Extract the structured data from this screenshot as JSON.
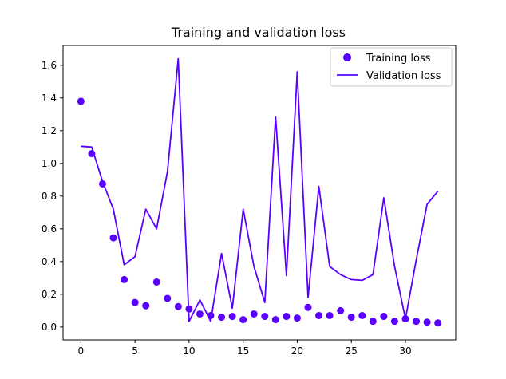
{
  "chart_data": {
    "type": "line",
    "title": "Training and validation loss",
    "xlabel": "",
    "ylabel": "",
    "xlim": [
      -1.65,
      34.65
    ],
    "ylim": [
      -0.0788,
      1.721
    ],
    "x_ticks": [
      0,
      5,
      10,
      15,
      20,
      25,
      30
    ],
    "y_ticks": [
      0.0,
      0.2,
      0.4,
      0.6,
      0.8,
      1.0,
      1.2,
      1.4,
      1.6
    ],
    "x_tick_labels": [
      "0",
      "5",
      "10",
      "15",
      "20",
      "25",
      "30"
    ],
    "y_tick_labels": [
      "0.0",
      "0.2",
      "0.4",
      "0.6",
      "0.8",
      "1.0",
      "1.2",
      "1.4",
      "1.6"
    ],
    "grid": false,
    "legend_position": "top-right",
    "series": [
      {
        "name": "Training loss",
        "style": "scatter",
        "color": "#5a00ff",
        "x": [
          0,
          1,
          2,
          3,
          4,
          5,
          6,
          7,
          8,
          9,
          10,
          11,
          12,
          13,
          14,
          15,
          16,
          17,
          18,
          19,
          20,
          21,
          22,
          23,
          24,
          25,
          26,
          27,
          28,
          29,
          30,
          31,
          32,
          33
        ],
        "values": [
          1.38,
          1.06,
          0.875,
          0.545,
          0.29,
          0.15,
          0.13,
          0.275,
          0.175,
          0.125,
          0.11,
          0.08,
          0.07,
          0.06,
          0.065,
          0.045,
          0.08,
          0.065,
          0.045,
          0.065,
          0.055,
          0.12,
          0.07,
          0.07,
          0.1,
          0.06,
          0.07,
          0.035,
          0.065,
          0.035,
          0.05,
          0.035,
          0.03,
          0.025
        ]
      },
      {
        "name": "Validation loss",
        "style": "line",
        "color": "#5a00ff",
        "x": [
          0,
          1,
          2,
          3,
          4,
          5,
          6,
          7,
          8,
          9,
          10,
          11,
          12,
          13,
          14,
          15,
          16,
          17,
          18,
          19,
          20,
          21,
          22,
          23,
          24,
          25,
          26,
          27,
          28,
          29,
          30,
          31,
          32,
          33
        ],
        "values": [
          1.105,
          1.1,
          0.89,
          0.72,
          0.38,
          0.43,
          0.72,
          0.6,
          0.95,
          1.64,
          0.035,
          0.165,
          0.035,
          0.45,
          0.115,
          0.72,
          0.37,
          0.15,
          1.285,
          0.315,
          1.56,
          0.18,
          0.86,
          0.37,
          0.32,
          0.29,
          0.285,
          0.32,
          0.79,
          0.37,
          0.05,
          0.41,
          0.75,
          0.83
        ]
      }
    ]
  }
}
